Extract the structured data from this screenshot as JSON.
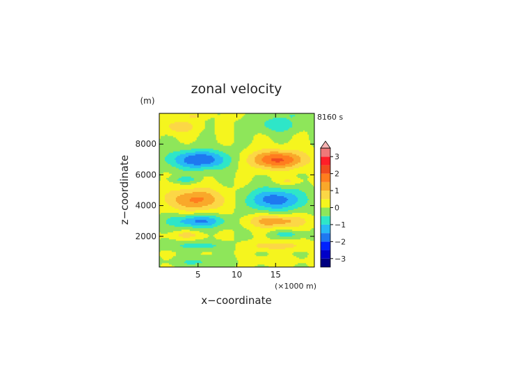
{
  "chart_data": {
    "type": "heatmap",
    "title": "zonal velocity",
    "xlabel": "x−coordinate",
    "ylabel": "z−coordinate",
    "x_unit": "(×1000 m)",
    "y_unit": "(m)",
    "time_label": "8160 s",
    "xlim": [
      0,
      20
    ],
    "ylim": [
      0,
      10000
    ],
    "x_ticks": [
      {
        "value": 5,
        "label": "5"
      },
      {
        "value": 10,
        "label": "10"
      },
      {
        "value": 15,
        "label": "15"
      }
    ],
    "y_ticks": [
      {
        "value": 2000,
        "label": "2000"
      },
      {
        "value": 4000,
        "label": "4000"
      },
      {
        "value": 6000,
        "label": "6000"
      },
      {
        "value": 8000,
        "label": "8000"
      }
    ],
    "colorbar": {
      "min": -3.5,
      "max": 3.5,
      "levels": [
        {
          "from": -3.5,
          "to": -3.0,
          "color": "#000080"
        },
        {
          "from": -3.0,
          "to": -2.5,
          "color": "#0000c8"
        },
        {
          "from": -2.5,
          "to": -2.0,
          "color": "#0022ff"
        },
        {
          "from": -2.0,
          "to": -1.5,
          "color": "#1e78f0"
        },
        {
          "from": -1.5,
          "to": -1.0,
          "color": "#27b9f5"
        },
        {
          "from": -1.0,
          "to": -0.5,
          "color": "#2ee6c8"
        },
        {
          "from": -0.5,
          "to": 0.0,
          "color": "#8ee65a"
        },
        {
          "from": 0.0,
          "to": 0.5,
          "color": "#f5f51e"
        },
        {
          "from": 0.5,
          "to": 1.0,
          "color": "#fcd746"
        },
        {
          "from": 1.0,
          "to": 1.5,
          "color": "#f9a82a"
        },
        {
          "from": 1.5,
          "to": 2.0,
          "color": "#ff7d1e"
        },
        {
          "from": 2.0,
          "to": 2.5,
          "color": "#f04b1e"
        },
        {
          "from": 2.5,
          "to": 3.0,
          "color": "#ff1e28"
        },
        {
          "from": 3.0,
          "to": 3.5,
          "color": "#f07878"
        }
      ],
      "extend_top_color": "#f8b4b4",
      "tick_values": [
        -3,
        -2,
        -1,
        0,
        1,
        2,
        3
      ],
      "tick_labels": [
        "−3",
        "−2",
        "−1",
        "0",
        "1",
        "2",
        "3"
      ]
    },
    "features": [
      {
        "x": 2.5,
        "z": 9150,
        "value": 0.8,
        "rx": 2.3,
        "rz": 450
      },
      {
        "x": 4.5,
        "z": 9850,
        "value": 0.6,
        "rx": 1.2,
        "rz": 200
      },
      {
        "x": 9.5,
        "z": 9850,
        "value": 0.5,
        "rx": 0.8,
        "rz": 200
      },
      {
        "x": 15.3,
        "z": 9300,
        "value": -0.9,
        "rx": 2.6,
        "rz": 520
      },
      {
        "x": 17.2,
        "z": 9900,
        "value": -0.4,
        "rx": 0.8,
        "rz": 200
      },
      {
        "x": 5.2,
        "z": 7000,
        "value": -2.0,
        "rx": 3.8,
        "rz": 620
      },
      {
        "x": 15.2,
        "z": 7000,
        "value": 2.1,
        "rx": 3.6,
        "rz": 600
      },
      {
        "x": 3.3,
        "z": 5700,
        "value": -0.7,
        "rx": 1.8,
        "rz": 230
      },
      {
        "x": 16.8,
        "z": 5600,
        "value": 0.6,
        "rx": 1.5,
        "rz": 220
      },
      {
        "x": 4.7,
        "z": 4400,
        "value": 1.6,
        "rx": 3.7,
        "rz": 720
      },
      {
        "x": 15.0,
        "z": 4400,
        "value": -1.8,
        "rx": 3.7,
        "rz": 720
      },
      {
        "x": 5.0,
        "z": 3000,
        "value": -1.6,
        "rx": 3.6,
        "rz": 420
      },
      {
        "x": 15.0,
        "z": 3000,
        "value": 1.4,
        "rx": 3.6,
        "rz": 420
      },
      {
        "x": 3.5,
        "z": 2100,
        "value": 0.7,
        "rx": 2.0,
        "rz": 230
      },
      {
        "x": 16.5,
        "z": 2150,
        "value": -0.7,
        "rx": 2.0,
        "rz": 230
      },
      {
        "x": 5.0,
        "z": 1400,
        "value": -0.8,
        "rx": 3.3,
        "rz": 250
      },
      {
        "x": 15.0,
        "z": 1400,
        "value": 0.9,
        "rx": 3.4,
        "rz": 250
      },
      {
        "x": 5.5,
        "z": 350,
        "value": -0.6,
        "rx": 3.5,
        "rz": 300
      },
      {
        "x": 15.0,
        "z": 400,
        "value": 0.3,
        "rx": 3.5,
        "rz": 300
      }
    ]
  }
}
